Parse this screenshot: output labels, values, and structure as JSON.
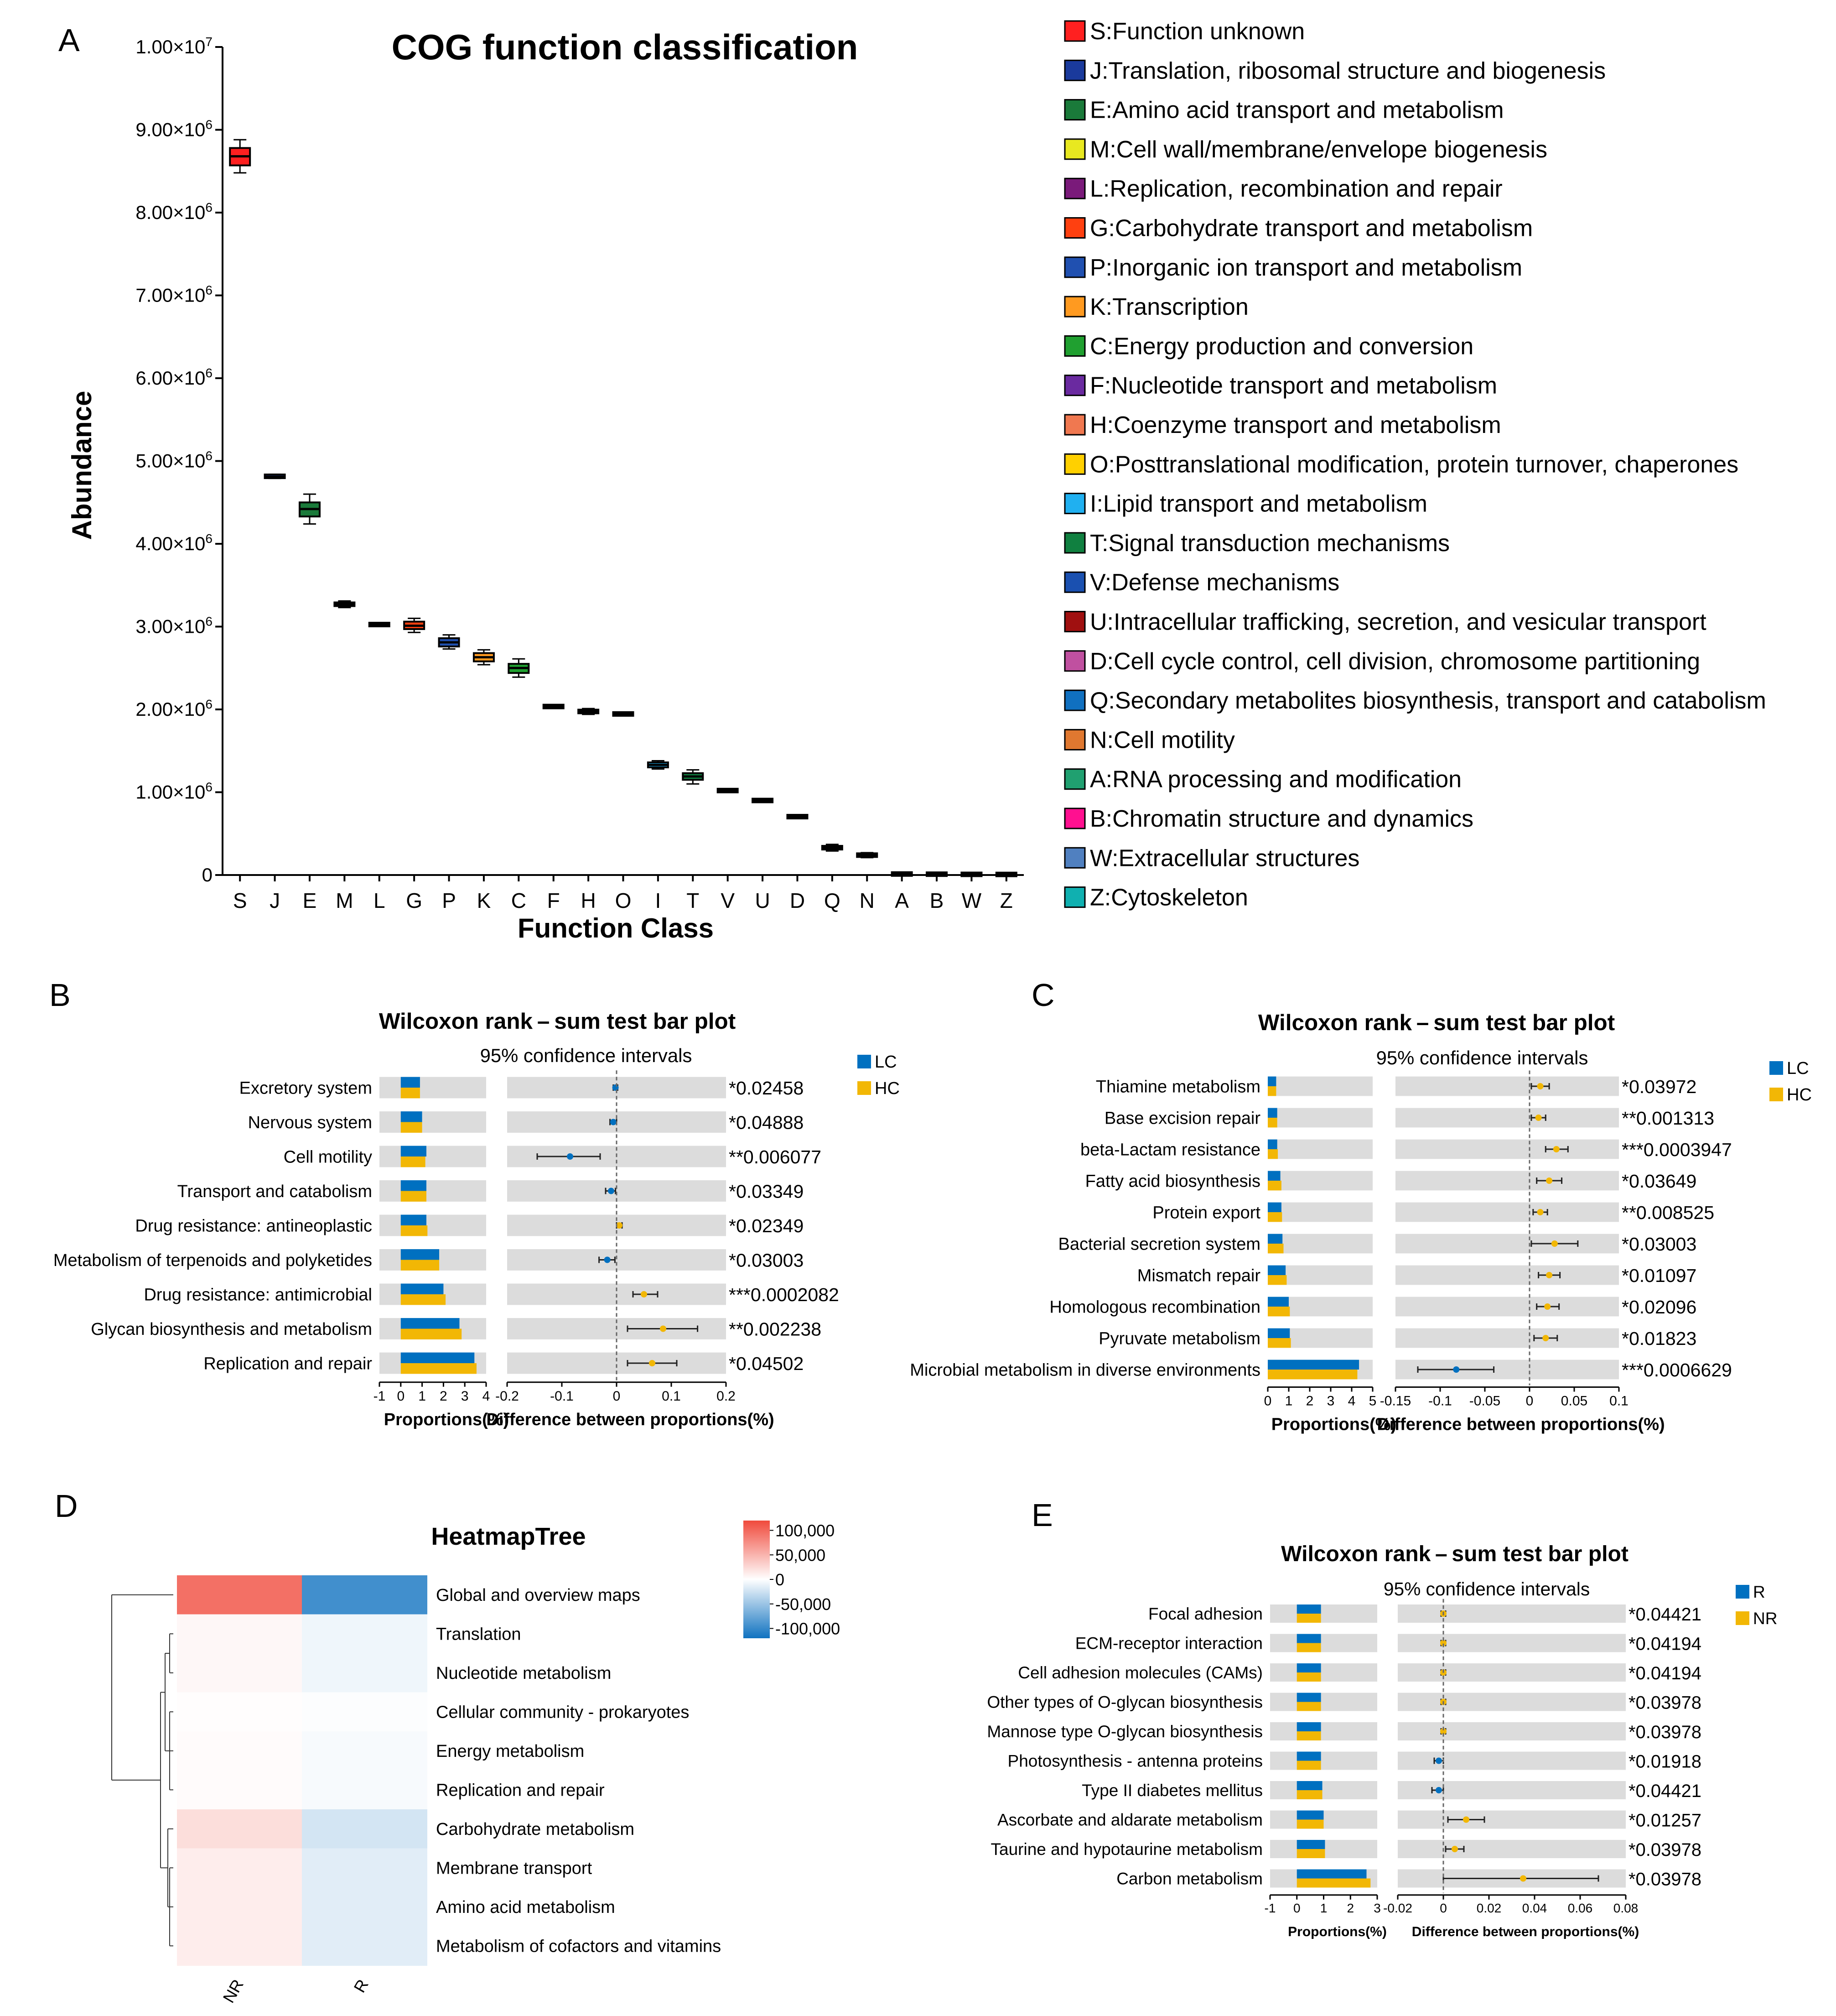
{
  "colors": {
    "lc": "#0070c0",
    "hc": "#f2b705",
    "bg_bar": "#dcdcdc",
    "heat_pos": "#f04a3c",
    "heat_neg": "#0f72c0"
  },
  "panel_labels": [
    "A",
    "B",
    "C",
    "D",
    "E"
  ],
  "chart_data": [
    {
      "id": "A",
      "type": "box",
      "title": "COG function classification",
      "xlabel": "Function Class",
      "ylabel": "Abundance",
      "ylim": [
        0,
        10000000
      ],
      "yticks": [
        {
          "value": 0,
          "mant": "0",
          "exp": ""
        },
        {
          "value": 1000000,
          "mant": "1.00×10",
          "exp": "6"
        },
        {
          "value": 2000000,
          "mant": "2.00×10",
          "exp": "6"
        },
        {
          "value": 3000000,
          "mant": "3.00×10",
          "exp": "6"
        },
        {
          "value": 4000000,
          "mant": "4.00×10",
          "exp": "6"
        },
        {
          "value": 5000000,
          "mant": "5.00×10",
          "exp": "6"
        },
        {
          "value": 6000000,
          "mant": "6.00×10",
          "exp": "6"
        },
        {
          "value": 7000000,
          "mant": "7.00×10",
          "exp": "6"
        },
        {
          "value": 8000000,
          "mant": "8.00×10",
          "exp": "6"
        },
        {
          "value": 9000000,
          "mant": "9.00×10",
          "exp": "6"
        },
        {
          "value": 10000000,
          "mant": "1.00×10",
          "exp": "7"
        }
      ],
      "categories": [
        "S",
        "J",
        "E",
        "M",
        "L",
        "G",
        "P",
        "K",
        "C",
        "F",
        "H",
        "O",
        "I",
        "T",
        "V",
        "U",
        "D",
        "Q",
        "N",
        "A",
        "B",
        "W",
        "Z"
      ],
      "boxes": [
        {
          "min": 8480000,
          "q1": 8570000,
          "median": 8680000,
          "q3": 8780000,
          "max": 8880000,
          "color": "#ff2020"
        },
        {
          "min": 4790000,
          "q1": 4800000,
          "median": 4810000,
          "q3": 4830000,
          "max": 4840000,
          "color": "#1a3a9c"
        },
        {
          "min": 4240000,
          "q1": 4330000,
          "median": 4420000,
          "q3": 4500000,
          "max": 4600000,
          "color": "#1a7a3a"
        },
        {
          "min": 3230000,
          "q1": 3250000,
          "median": 3270000,
          "q3": 3290000,
          "max": 3310000,
          "color": "#e8e820"
        },
        {
          "min": 3010000,
          "q1": 3015000,
          "median": 3025000,
          "q3": 3035000,
          "max": 3040000,
          "color": "#7a1a7a"
        },
        {
          "min": 2930000,
          "q1": 2970000,
          "median": 3010000,
          "q3": 3060000,
          "max": 3100000,
          "color": "#ff4010"
        },
        {
          "min": 2730000,
          "q1": 2760000,
          "median": 2810000,
          "q3": 2860000,
          "max": 2900000,
          "color": "#2050b0"
        },
        {
          "min": 2540000,
          "q1": 2580000,
          "median": 2630000,
          "q3": 2680000,
          "max": 2720000,
          "color": "#ff9a20"
        },
        {
          "min": 2390000,
          "q1": 2440000,
          "median": 2500000,
          "q3": 2550000,
          "max": 2610000,
          "color": "#20a030"
        },
        {
          "min": 2020000,
          "q1": 2025000,
          "median": 2035000,
          "q3": 2045000,
          "max": 2050000,
          "color": "#6a2aa0"
        },
        {
          "min": 1940000,
          "q1": 1955000,
          "median": 1975000,
          "q3": 1995000,
          "max": 2010000,
          "color": "#f07850"
        },
        {
          "min": 1920000,
          "q1": 1930000,
          "median": 1945000,
          "q3": 1960000,
          "max": 1970000,
          "color": "#ffd000"
        },
        {
          "min": 1280000,
          "q1": 1300000,
          "median": 1330000,
          "q3": 1360000,
          "max": 1380000,
          "color": "#20b0f0"
        },
        {
          "min": 1100000,
          "q1": 1150000,
          "median": 1190000,
          "q3": 1230000,
          "max": 1270000,
          "color": "#108040"
        },
        {
          "min": 1010000,
          "q1": 1015000,
          "median": 1020000,
          "q3": 1025000,
          "max": 1030000,
          "color": "#1a50b0"
        },
        {
          "min": 890000,
          "q1": 895000,
          "median": 900000,
          "q3": 905000,
          "max": 910000,
          "color": "#a01010"
        },
        {
          "min": 695000,
          "q1": 700000,
          "median": 705000,
          "q3": 710000,
          "max": 715000,
          "color": "#c050a0"
        },
        {
          "min": 290000,
          "q1": 310000,
          "median": 330000,
          "q3": 350000,
          "max": 370000,
          "color": "#1070c0"
        },
        {
          "min": 210000,
          "q1": 225000,
          "median": 240000,
          "q3": 255000,
          "max": 270000,
          "color": "#e07830"
        },
        {
          "min": 8000,
          "q1": 10000,
          "median": 12000,
          "q3": 14000,
          "max": 16000,
          "color": "#20a070"
        },
        {
          "min": 6000,
          "q1": 8000,
          "median": 10000,
          "q3": 12000,
          "max": 14000,
          "color": "#ff1090"
        },
        {
          "min": 5000,
          "q1": 6000,
          "median": 8000,
          "q3": 10000,
          "max": 12000,
          "color": "#5080c0"
        },
        {
          "min": 4000,
          "q1": 5000,
          "median": 7000,
          "q3": 9000,
          "max": 11000,
          "color": "#10b0b0"
        }
      ],
      "legend": [
        {
          "label": "S:Function unknown",
          "color": "#ff2020"
        },
        {
          "label": "J:Translation, ribosomal structure and biogenesis",
          "color": "#1a3a9c"
        },
        {
          "label": "E:Amino acid transport and metabolism",
          "color": "#1a7a3a"
        },
        {
          "label": "M:Cell wall/membrane/envelope biogenesis",
          "color": "#e8e820"
        },
        {
          "label": "L:Replication, recombination and repair",
          "color": "#7a1a7a"
        },
        {
          "label": "G:Carbohydrate transport and metabolism",
          "color": "#ff4010"
        },
        {
          "label": "P:Inorganic ion transport and metabolism",
          "color": "#2050b0"
        },
        {
          "label": "K:Transcription",
          "color": "#ff9a20"
        },
        {
          "label": "C:Energy production and conversion",
          "color": "#20a030"
        },
        {
          "label": "F:Nucleotide transport and metabolism",
          "color": "#6a2aa0"
        },
        {
          "label": "H:Coenzyme transport and metabolism",
          "color": "#f07850"
        },
        {
          "label": "O:Posttranslational modification, protein turnover, chaperones",
          "color": "#ffd000"
        },
        {
          "label": "I:Lipid transport and metabolism",
          "color": "#20b0f0"
        },
        {
          "label": "T:Signal transduction mechanisms",
          "color": "#108040"
        },
        {
          "label": "V:Defense mechanisms",
          "color": "#1a50b0"
        },
        {
          "label": "U:Intracellular trafficking, secretion, and vesicular transport",
          "color": "#a01010"
        },
        {
          "label": "D:Cell cycle control, cell division, chromosome partitioning",
          "color": "#c050a0"
        },
        {
          "label": "Q:Secondary metabolites biosynthesis, transport and catabolism",
          "color": "#1070c0"
        },
        {
          "label": "N:Cell motility",
          "color": "#e07830"
        },
        {
          "label": "A:RNA processing and modification",
          "color": "#20a070"
        },
        {
          "label": "B:Chromatin structure and dynamics",
          "color": "#ff1090"
        },
        {
          "label": "W:Extracellular structures",
          "color": "#5080c0"
        },
        {
          "label": "Z:Cytoskeleton",
          "color": "#10b0b0"
        }
      ]
    },
    {
      "id": "B",
      "type": "bar",
      "title": "Wilcoxon rank – sum test bar plot",
      "subtitle": "95% confidence intervals",
      "legend": [
        "LC",
        "HC"
      ],
      "xlabel_prop": "Proportions(%)",
      "xlabel_diff": "Difference between proportions(%)",
      "prop_range": [
        -1,
        4
      ],
      "prop_ticks": [
        "-1",
        "0",
        "1",
        "2",
        "3",
        "4"
      ],
      "diff_range": [
        -0.2,
        0.2
      ],
      "diff_ticks": [
        "-0.2",
        "-0.1",
        "0",
        "0.1",
        "0.2"
      ],
      "rows": [
        {
          "label": "Excretory system",
          "g1": 0.9,
          "g2": 0.9,
          "diff": -0.002,
          "lo": -0.006,
          "hi": 0.002,
          "p": "*0.02458"
        },
        {
          "label": "Nervous system",
          "g1": 1.0,
          "g2": 1.0,
          "diff": -0.006,
          "lo": -0.012,
          "hi": 0.0,
          "p": "*0.04888"
        },
        {
          "label": "Cell motility",
          "g1": 1.2,
          "g2": 1.15,
          "diff": -0.085,
          "lo": -0.145,
          "hi": -0.03,
          "p": "**0.006077"
        },
        {
          "label": "Transport and catabolism",
          "g1": 1.2,
          "g2": 1.2,
          "diff": -0.01,
          "lo": -0.02,
          "hi": -0.002,
          "p": "*0.03349"
        },
        {
          "label": "Drug resistance: antineoplastic",
          "g1": 1.2,
          "g2": 1.25,
          "diff": 0.005,
          "lo": 0.0,
          "hi": 0.01,
          "p": "*0.02349"
        },
        {
          "label": "Metabolism of terpenoids and polyketides",
          "g1": 1.8,
          "g2": 1.8,
          "diff": -0.017,
          "lo": -0.032,
          "hi": -0.003,
          "p": "*0.03003"
        },
        {
          "label": "Drug resistance: antimicrobial",
          "g1": 2.0,
          "g2": 2.1,
          "diff": 0.05,
          "lo": 0.03,
          "hi": 0.075,
          "p": "***0.0002082"
        },
        {
          "label": "Glycan biosynthesis and metabolism",
          "g1": 2.75,
          "g2": 2.85,
          "diff": 0.085,
          "lo": 0.02,
          "hi": 0.148,
          "p": "**0.002238"
        },
        {
          "label": "Replication and repair",
          "g1": 3.45,
          "g2": 3.55,
          "diff": 0.065,
          "lo": 0.02,
          "hi": 0.11,
          "p": "*0.04502"
        }
      ]
    },
    {
      "id": "C",
      "type": "bar",
      "title": "Wilcoxon rank – sum test bar plot",
      "subtitle": "95% confidence intervals",
      "legend": [
        "LC",
        "HC"
      ],
      "xlabel_prop": "Proportions(%)",
      "xlabel_diff": "Difference between proportions(%)",
      "prop_range": [
        0,
        5
      ],
      "prop_ticks": [
        "0",
        "1",
        "2",
        "3",
        "4",
        "5"
      ],
      "diff_range": [
        -0.15,
        0.1
      ],
      "diff_ticks": [
        "-0.15",
        "-0.1",
        "-0.05",
        "0",
        "0.05",
        "0.1"
      ],
      "rows": [
        {
          "label": "Thiamine metabolism",
          "g1": 0.4,
          "g2": 0.4,
          "diff": 0.012,
          "lo": 0.002,
          "hi": 0.022,
          "p": "*0.03972"
        },
        {
          "label": "Base excision repair",
          "g1": 0.45,
          "g2": 0.45,
          "diff": 0.01,
          "lo": 0.002,
          "hi": 0.018,
          "p": "**0.001313"
        },
        {
          "label": "beta-Lactam resistance",
          "g1": 0.45,
          "g2": 0.48,
          "diff": 0.03,
          "lo": 0.018,
          "hi": 0.043,
          "p": "***0.0003947"
        },
        {
          "label": "Fatty acid biosynthesis",
          "g1": 0.6,
          "g2": 0.65,
          "diff": 0.022,
          "lo": 0.008,
          "hi": 0.036,
          "p": "*0.03649"
        },
        {
          "label": "Protein export",
          "g1": 0.65,
          "g2": 0.68,
          "diff": 0.012,
          "lo": 0.004,
          "hi": 0.02,
          "p": "**0.008525"
        },
        {
          "label": "Bacterial secretion system",
          "g1": 0.7,
          "g2": 0.75,
          "diff": 0.028,
          "lo": 0.002,
          "hi": 0.054,
          "p": "*0.03003"
        },
        {
          "label": "Mismatch repair",
          "g1": 0.85,
          "g2": 0.9,
          "diff": 0.022,
          "lo": 0.01,
          "hi": 0.034,
          "p": "*0.01097"
        },
        {
          "label": "Homologous recombination",
          "g1": 1.0,
          "g2": 1.05,
          "diff": 0.02,
          "lo": 0.008,
          "hi": 0.033,
          "p": "*0.02096"
        },
        {
          "label": "Pyruvate metabolism",
          "g1": 1.05,
          "g2": 1.1,
          "diff": 0.018,
          "lo": 0.005,
          "hi": 0.031,
          "p": "*0.01823"
        },
        {
          "label": "Microbial metabolism in diverse environments",
          "g1": 4.35,
          "g2": 4.27,
          "diff": -0.082,
          "lo": -0.125,
          "hi": -0.04,
          "p": "***0.0006629"
        }
      ]
    },
    {
      "id": "E",
      "type": "bar",
      "title": "Wilcoxon rank – sum test bar plot",
      "subtitle": "95% confidence intervals",
      "legend": [
        "R",
        "NR"
      ],
      "xlabel_prop": "Proportions(%)",
      "xlabel_diff": "Difference between proportions(%)",
      "prop_range": [
        -1,
        3
      ],
      "prop_ticks": [
        "-1",
        "0",
        "1",
        "2",
        "3"
      ],
      "diff_range": [
        -0.02,
        0.08
      ],
      "diff_ticks": [
        "-0.02",
        "0",
        "0.02",
        "0.04",
        "0.06",
        "0.08"
      ],
      "rows": [
        {
          "label": "Focal adhesion",
          "g1": 0.9,
          "g2": 0.9,
          "diff": 0.0,
          "lo": -0.001,
          "hi": 0.001,
          "p": "*0.04421"
        },
        {
          "label": "ECM-receptor interaction",
          "g1": 0.9,
          "g2": 0.9,
          "diff": 0.0,
          "lo": -0.001,
          "hi": 0.001,
          "p": "*0.04194"
        },
        {
          "label": "Cell adhesion molecules (CAMs)",
          "g1": 0.9,
          "g2": 0.9,
          "diff": 0.0,
          "lo": -0.001,
          "hi": 0.001,
          "p": "*0.04194"
        },
        {
          "label": "Other types of O-glycan biosynthesis",
          "g1": 0.9,
          "g2": 0.9,
          "diff": 0.0,
          "lo": -0.001,
          "hi": 0.001,
          "p": "*0.03978"
        },
        {
          "label": "Mannose type O-glycan biosynthesis",
          "g1": 0.9,
          "g2": 0.9,
          "diff": 0.0,
          "lo": -0.001,
          "hi": 0.001,
          "p": "*0.03978"
        },
        {
          "label": "Photosynthesis - antenna proteins",
          "g1": 0.9,
          "g2": 0.9,
          "diff": -0.002,
          "lo": -0.004,
          "hi": 0.0,
          "p": "*0.01918"
        },
        {
          "label": "Type II diabetes mellitus",
          "g1": 0.95,
          "g2": 0.95,
          "diff": -0.002,
          "lo": -0.005,
          "hi": 0.0,
          "p": "*0.04421"
        },
        {
          "label": "Ascorbate and aldarate metabolism",
          "g1": 1.0,
          "g2": 1.0,
          "diff": 0.01,
          "lo": 0.002,
          "hi": 0.018,
          "p": "*0.01257"
        },
        {
          "label": "Taurine and hypotaurine metabolism",
          "g1": 1.05,
          "g2": 1.05,
          "diff": 0.005,
          "lo": 0.001,
          "hi": 0.009,
          "p": "*0.03978"
        },
        {
          "label": "Carbon metabolism",
          "g1": 2.6,
          "g2": 2.75,
          "diff": 0.035,
          "lo": 0.0,
          "hi": 0.068,
          "p": "*0.03978"
        }
      ]
    },
    {
      "id": "D",
      "type": "heatmap",
      "title": "HeatmapTree",
      "columns": [
        "NR",
        "R"
      ],
      "rows": [
        "Global and overview maps",
        "Translation",
        "Nucleotide metabolism",
        "Cellular community - prokaryotes",
        "Energy metabolism",
        "Replication and repair",
        "Carbohydrate metabolism",
        "Membrane transport",
        "Amino acid metabolism",
        "Metabolism of cofactors and vitamins"
      ],
      "values": [
        [
          95000,
          -95000
        ],
        [
          5000,
          -8000
        ],
        [
          5000,
          -8000
        ],
        [
          1500,
          -1500
        ],
        [
          2500,
          -4000
        ],
        [
          2500,
          -4000
        ],
        [
          22000,
          -22000
        ],
        [
          12000,
          -15000
        ],
        [
          12000,
          -15000
        ],
        [
          12000,
          -15000
        ]
      ],
      "scale_range": [
        -120000,
        120000
      ],
      "colorbar_ticks": [
        {
          "value": 100000,
          "label": "100,000"
        },
        {
          "value": 50000,
          "label": "50,000"
        },
        {
          "value": 0,
          "label": "0"
        },
        {
          "value": -50000,
          "label": "-50,000"
        },
        {
          "value": -100000,
          "label": "-100,000"
        }
      ]
    }
  ]
}
